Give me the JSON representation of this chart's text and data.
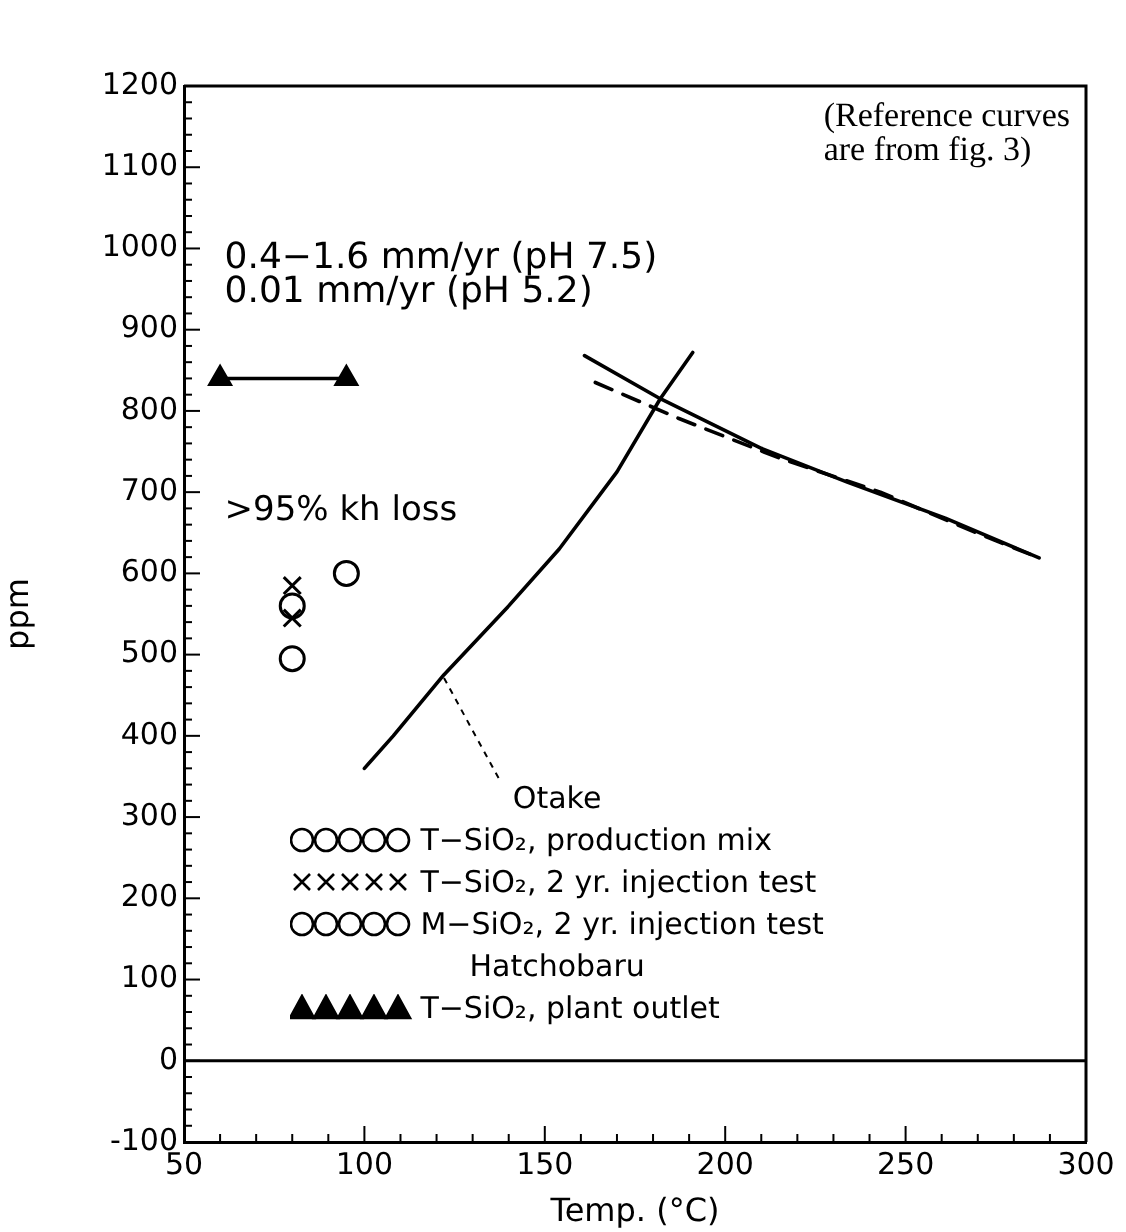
{
  "chart_data": {
    "type": "scatter",
    "xlabel": "Temp. (°C)",
    "ylabel": "ppm",
    "xlim": [
      50,
      300
    ],
    "xticks": [
      50,
      {
        "value": 60,
        "label": null
      },
      {
        "value": 70,
        "label": null
      },
      {
        "value": 80,
        "label": null
      },
      {
        "value": 90,
        "label": null
      },
      100,
      {
        "value": 110,
        "label": null
      },
      {
        "value": 120,
        "label": null
      },
      {
        "value": 130,
        "label": null
      },
      {
        "value": 140,
        "label": null
      },
      150,
      {
        "value": 160,
        "label": null
      },
      {
        "value": 170,
        "label": null
      },
      {
        "value": 180,
        "label": null
      },
      {
        "value": 190,
        "label": null
      },
      200,
      {
        "value": 210,
        "label": null
      },
      {
        "value": 220,
        "label": null
      },
      {
        "value": 230,
        "label": null
      },
      {
        "value": 240,
        "label": null
      },
      250,
      {
        "value": 260,
        "label": null
      },
      {
        "value": 270,
        "label": null
      },
      {
        "value": 280,
        "label": null
      },
      {
        "value": 290,
        "label": null
      },
      300
    ],
    "ylim": [
      -100,
      1200
    ],
    "yticks": [
      -100,
      {
        "value": -80,
        "label": null
      },
      {
        "value": -60,
        "label": null
      },
      {
        "value": -40,
        "label": null
      },
      {
        "value": -20,
        "label": null
      },
      0,
      {
        "value": 20,
        "label": null
      },
      {
        "value": 40,
        "label": null
      },
      {
        "value": 60,
        "label": null
      },
      {
        "value": 80,
        "label": null
      },
      100,
      {
        "value": 120,
        "label": null
      },
      {
        "value": 140,
        "label": null
      },
      {
        "value": 160,
        "label": null
      },
      {
        "value": 180,
        "label": null
      },
      200,
      {
        "value": 220,
        "label": null
      },
      {
        "value": 240,
        "label": null
      },
      {
        "value": 260,
        "label": null
      },
      {
        "value": 280,
        "label": null
      },
      300,
      {
        "value": 320,
        "label": null
      },
      {
        "value": 340,
        "label": null
      },
      {
        "value": 360,
        "label": null
      },
      {
        "value": 380,
        "label": null
      },
      400,
      {
        "value": 420,
        "label": null
      },
      {
        "value": 440,
        "label": null
      },
      {
        "value": 460,
        "label": null
      },
      {
        "value": 480,
        "label": null
      },
      500,
      {
        "value": 520,
        "label": null
      },
      {
        "value": 540,
        "label": null
      },
      {
        "value": 560,
        "label": null
      },
      {
        "value": 580,
        "label": null
      },
      600,
      {
        "value": 620,
        "label": null
      },
      {
        "value": 640,
        "label": null
      },
      {
        "value": 660,
        "label": null
      },
      {
        "value": 680,
        "label": null
      },
      700,
      {
        "value": 720,
        "label": null
      },
      {
        "value": 740,
        "label": null
      },
      {
        "value": 760,
        "label": null
      },
      {
        "value": 780,
        "label": null
      },
      800,
      {
        "value": 820,
        "label": null
      },
      {
        "value": 840,
        "label": null
      },
      {
        "value": 860,
        "label": null
      },
      {
        "value": 880,
        "label": null
      },
      900,
      {
        "value": 920,
        "label": null
      },
      {
        "value": 940,
        "label": null
      },
      {
        "value": 960,
        "label": null
      },
      {
        "value": 980,
        "label": null
      },
      1000,
      {
        "value": 1020,
        "label": null
      },
      {
        "value": 1040,
        "label": null
      },
      {
        "value": 1060,
        "label": null
      },
      {
        "value": 1080,
        "label": null
      },
      1100,
      {
        "value": 1120,
        "label": null
      },
      {
        "value": 1140,
        "label": null
      },
      {
        "value": 1160,
        "label": null
      },
      {
        "value": 1180,
        "label": null
      },
      1200
    ],
    "grid": false,
    "legend": "bottom",
    "series": [
      {
        "name": "T−SiO₂, production mix",
        "marker": "circle",
        "color": "#000000",
        "x": [
          95
        ],
        "values": [
          600
        ]
      },
      {
        "name": "T−SiO₂, 2 yr. injection test",
        "marker": "cross",
        "color": "#000000",
        "x": [
          80,
          80
        ],
        "values": [
          585,
          545
        ]
      },
      {
        "name": "M−SiO₂, 2 yr. injection test",
        "marker": "circle",
        "color": "#000000",
        "x": [
          80,
          80
        ],
        "values": [
          560,
          495
        ]
      },
      {
        "name": "T−SiO₂, plant outlet",
        "type": "line",
        "marker": "triangle",
        "color": "#000000",
        "x": [
          60,
          95
        ],
        "values": [
          840,
          840
        ]
      },
      {
        "type": "line",
        "marker": "none",
        "line_style": "solid",
        "color": "#000000",
        "x": [
          100,
          108,
          122,
          140,
          154,
          170,
          182,
          191
        ],
        "values": [
          360,
          400,
          475,
          560,
          630,
          725,
          815,
          872
        ]
      },
      {
        "type": "line",
        "marker": "none",
        "line_style": "solid",
        "color": "#000000",
        "x": [
          161,
          182,
          210,
          234,
          261,
          287
        ],
        "values": [
          868,
          815,
          754,
          712,
          668,
          619
        ]
      },
      {
        "type": "line",
        "marker": "none",
        "line_style": "dashed",
        "color": "#000000",
        "x": [
          164,
          187,
          215,
          243,
          269,
          287
        ],
        "values": [
          835,
          791,
          742,
          700,
          651,
          619
        ]
      }
    ],
    "ref_lines": [
      {
        "axis": "y",
        "value": 0,
        "color": "#000000"
      }
    ],
    "annotations": [
      "(Reference curves\nare from fig. 3)",
      "0.4−1.6 mm/yr (pH 7.5)",
      "0.01 mm/yr (pH 5.2)",
      ">95% kh loss",
      {
        "text": "Otake",
        "x": 122,
        "y": 470
      },
      "Hatchobaru"
    ]
  }
}
